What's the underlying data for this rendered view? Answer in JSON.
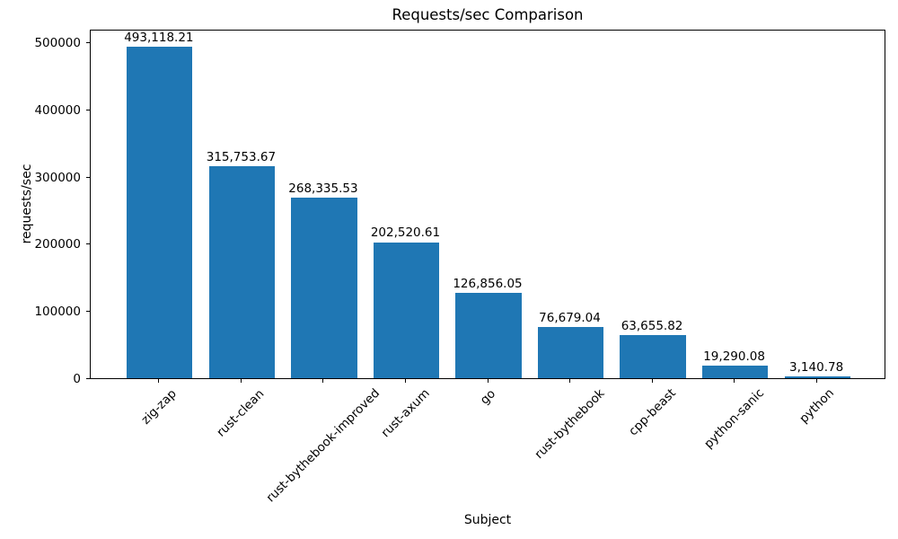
{
  "chart_data": {
    "type": "bar",
    "title": "Requests/sec Comparison",
    "xlabel": "Subject",
    "ylabel": "requests/sec",
    "categories": [
      "zig-zap",
      "rust-clean",
      "rust-bythebook-improved",
      "rust-axum",
      "go",
      "rust-bythebook",
      "cpp-beast",
      "python-sanic",
      "python"
    ],
    "values": [
      493118.21,
      315753.67,
      268335.53,
      202520.61,
      126856.05,
      76679.04,
      63655.82,
      19290.08,
      3140.78
    ],
    "value_labels": [
      "493,118.21",
      "315,753.67",
      "268,335.53",
      "202,520.61",
      "126,856.05",
      "76,679.04",
      "63,655.82",
      "19,290.08",
      "3,140.78"
    ],
    "y_ticks": [
      0,
      100000,
      200000,
      300000,
      400000,
      500000
    ],
    "y_tick_labels": [
      "0",
      "100000",
      "200000",
      "300000",
      "400000",
      "500000"
    ],
    "ylim": [
      0,
      520000
    ],
    "x_tick_rotation": 45,
    "grid": false,
    "legend": null,
    "bar_color": "#1f77b4",
    "text_color": "#000000",
    "spine_color": "#000000",
    "background_color": "#ffffff"
  }
}
